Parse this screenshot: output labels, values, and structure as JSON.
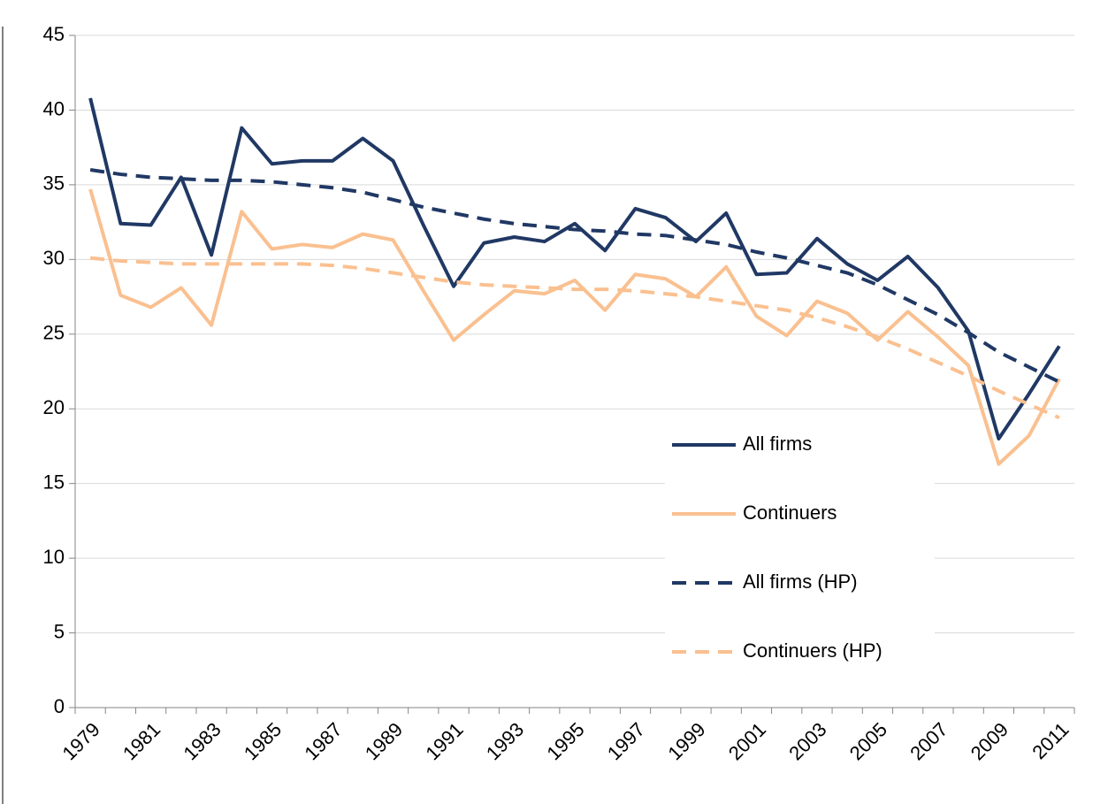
{
  "chart_data": {
    "type": "line",
    "categories": [
      "1979",
      null,
      "1981",
      null,
      "1983",
      null,
      "1985",
      null,
      "1987",
      null,
      "1989",
      null,
      "1991",
      null,
      "1993",
      null,
      "1995",
      null,
      "1997",
      null,
      "1999",
      null,
      "2001",
      null,
      "2003",
      null,
      "2005",
      null,
      "2007",
      null,
      "2009",
      null,
      "2011"
    ],
    "series": [
      {
        "name": "All firms",
        "color": "#203864",
        "dashed": false,
        "values": [
          40.8,
          32.4,
          32.3,
          35.5,
          30.3,
          38.8,
          36.4,
          36.6,
          36.6,
          38.1,
          36.6,
          32.3,
          28.2,
          31.1,
          31.5,
          31.2,
          32.4,
          30.6,
          33.4,
          32.8,
          31.2,
          33.1,
          29.0,
          29.1,
          31.4,
          29.7,
          28.6,
          30.2,
          28.1,
          25.2,
          18.0,
          21.0,
          24.2
        ]
      },
      {
        "name": "Continuers",
        "color": "#fac090",
        "dashed": false,
        "values": [
          34.7,
          27.6,
          26.8,
          28.1,
          25.6,
          33.2,
          30.7,
          31.0,
          30.8,
          31.7,
          31.3,
          27.9,
          24.6,
          26.3,
          27.9,
          27.7,
          28.6,
          26.6,
          29.0,
          28.7,
          27.5,
          29.5,
          26.2,
          24.9,
          27.2,
          26.4,
          24.6,
          26.5,
          24.8,
          22.9,
          16.3,
          18.2,
          22.0
        ]
      },
      {
        "name": "All firms (HP)",
        "color": "#203864",
        "dashed": true,
        "values": [
          36.0,
          35.7,
          35.5,
          35.4,
          35.3,
          35.3,
          35.2,
          35.0,
          34.8,
          34.5,
          34.0,
          33.5,
          33.1,
          32.7,
          32.4,
          32.2,
          32.0,
          31.9,
          31.7,
          31.6,
          31.3,
          31.0,
          30.5,
          30.1,
          29.6,
          29.1,
          28.3,
          27.3,
          26.3,
          25.1,
          23.8,
          22.8,
          21.8
        ]
      },
      {
        "name": "Continuers (HP)",
        "color": "#fac090",
        "dashed": true,
        "values": [
          30.1,
          29.9,
          29.8,
          29.7,
          29.7,
          29.7,
          29.7,
          29.7,
          29.6,
          29.4,
          29.1,
          28.8,
          28.5,
          28.3,
          28.2,
          28.1,
          28.0,
          28.0,
          27.9,
          27.7,
          27.5,
          27.2,
          26.9,
          26.6,
          26.1,
          25.5,
          24.8,
          24.0,
          23.1,
          22.2,
          21.2,
          20.3,
          19.4
        ]
      }
    ],
    "ylim": [
      0,
      45
    ],
    "yticks": [
      0,
      5,
      10,
      15,
      20,
      25,
      30,
      35,
      40,
      45
    ],
    "grid": true,
    "legend": "right"
  }
}
